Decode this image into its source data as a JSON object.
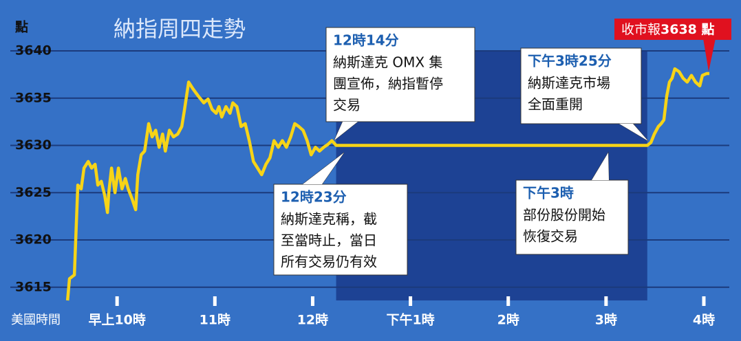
{
  "chart_data": {
    "type": "line",
    "title": "納指周四走勢",
    "y_label": "點",
    "x_label": "美國時間",
    "xlim": [
      534.5,
      982.8
    ],
    "ylim": [
      3613.6,
      3643.2
    ],
    "xticks": [
      {
        "value": 600,
        "label": "早上10時"
      },
      {
        "value": 660,
        "label": "11時"
      },
      {
        "value": 720,
        "label": "12時"
      },
      {
        "value": 780,
        "label": "下午1時"
      },
      {
        "value": 840,
        "label": "2時"
      },
      {
        "value": 900,
        "label": "3時"
      },
      {
        "value": 960,
        "label": "4時"
      }
    ],
    "yticks": [
      3615,
      3620,
      3625,
      3630,
      3635,
      3640
    ],
    "grid": true,
    "halt_span": [
      734.4,
      925.3
    ],
    "series": [
      {
        "color": "#f7d417",
        "x": [
          569.6,
          570.8,
          573.8,
          575.9,
          578.0,
          579.7,
          582.3,
          584.4,
          586.5,
          588.2,
          590.3,
          592.4,
          594.1,
          594.9,
          596.6,
          598.7,
          600.8,
          603.0,
          605.1,
          606.8,
          609.3,
          611.4,
          612.7,
          614.8,
          616.9,
          619.4,
          621.5,
          623.7,
          625.8,
          627.9,
          629.6,
          632.1,
          634.6,
          637.2,
          639.7,
          641.4,
          643.9,
          646.5,
          649.9,
          653.2,
          655.8,
          658.3,
          660.8,
          662.5,
          664.2,
          666.8,
          669.3,
          671.0,
          673.5,
          676.1,
          678.6,
          681.1,
          683.7,
          686.2,
          688.7,
          691.3,
          693.8,
          696.3,
          698.9,
          701.4,
          703.9,
          706.5,
          709.0,
          711.5,
          714.1,
          716.6,
          719.1,
          721.7,
          724.2,
          726.8,
          729.3,
          731.8,
          734.4,
          925.3,
          927.5,
          929.6,
          932.1,
          933.8,
          935.5,
          937.2,
          938.9,
          940.5,
          942.2,
          944.8,
          947.3,
          949.8,
          952.4,
          954.9,
          957.5,
          959.1,
          961.7,
          963.4
        ],
        "values": [
          3613.6,
          3615.9,
          3616.3,
          3625.8,
          3625.4,
          3627.6,
          3628.3,
          3627.6,
          3628.0,
          3625.8,
          3626.2,
          3624.7,
          3622.9,
          3625.0,
          3627.6,
          3625.0,
          3627.6,
          3625.4,
          3626.5,
          3625.4,
          3624.3,
          3623.2,
          3626.9,
          3629.0,
          3629.4,
          3632.3,
          3630.9,
          3631.6,
          3629.8,
          3631.2,
          3629.4,
          3631.6,
          3630.9,
          3631.2,
          3632.0,
          3633.8,
          3636.7,
          3636.0,
          3635.2,
          3634.5,
          3634.9,
          3633.8,
          3633.4,
          3634.1,
          3633.0,
          3634.1,
          3633.4,
          3634.5,
          3634.1,
          3632.0,
          3632.3,
          3630.5,
          3628.3,
          3627.6,
          3626.9,
          3628.0,
          3628.7,
          3630.5,
          3629.8,
          3630.5,
          3629.8,
          3630.9,
          3632.3,
          3632.0,
          3631.6,
          3630.5,
          3629.0,
          3629.8,
          3629.4,
          3629.8,
          3630.1,
          3630.5,
          3630.0,
          3630.0,
          3630.3,
          3631.2,
          3632.0,
          3632.3,
          3632.7,
          3635.2,
          3636.7,
          3637.1,
          3638.1,
          3637.8,
          3637.1,
          3636.7,
          3637.4,
          3636.7,
          3636.3,
          3637.4,
          3637.6,
          3637.6
        ]
      }
    ],
    "annotations": [
      {
        "time": "12時14分",
        "lines": [
          "納斯達克 OMX 集",
          "團宣佈，納指暫停",
          "交易"
        ]
      },
      {
        "time": "12時23分",
        "lines": [
          "納斯達克稱，截",
          "至當時止，當日",
          "所有交易仍有效"
        ]
      },
      {
        "time": "下午3時25分",
        "lines": [
          "納斯達克市場",
          "全面重開"
        ]
      },
      {
        "time": "下午3時",
        "lines": [
          "部份股份開始",
          "恢復交易"
        ]
      }
    ],
    "close_label": {
      "text": "收市報",
      "value_text": "3638 點"
    }
  }
}
